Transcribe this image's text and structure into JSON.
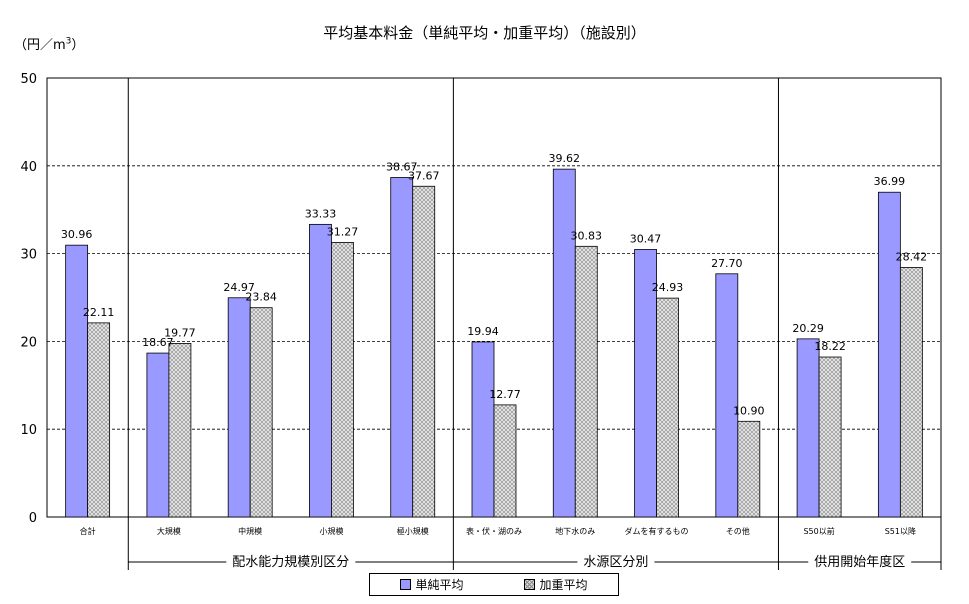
{
  "title": "平均基本料金（単純平均・加重平均）（施設別）",
  "unit_label": "（円／m",
  "unit_sup": "3",
  "unit_close": "）",
  "colors": {
    "simple": "#9999ff",
    "weighted": "#e0e0e0",
    "grid": "#000000"
  },
  "legend": {
    "simple": "単純平均",
    "weighted": "加重平均"
  },
  "chart_data": {
    "type": "bar",
    "title": "平均基本料金（単純平均・加重平均）（施設別）",
    "ylabel": "（円／m3）",
    "xlabel": "",
    "ylim": [
      0,
      50
    ],
    "yticks": [
      0,
      10,
      20,
      30,
      40,
      50
    ],
    "grid": "horizontal-dashed",
    "legend_position": "bottom",
    "categories": [
      "合計",
      "大規模",
      "中規模",
      "小規模",
      "極小規模",
      "表・伏・湖のみ",
      "地下水のみ",
      "ダムを有するもの",
      "その他",
      "S50以前",
      "S51以降"
    ],
    "groups": [
      {
        "label": "",
        "categories": [
          "合計"
        ]
      },
      {
        "label": "配水能力規模別区分",
        "categories": [
          "大規模",
          "中規模",
          "小規模",
          "極小規模"
        ]
      },
      {
        "label": "水源区分別",
        "categories": [
          "表・伏・湖のみ",
          "地下水のみ",
          "ダムを有するもの",
          "その他"
        ]
      },
      {
        "label": "供用開始年度区",
        "categories": [
          "S50以前",
          "S51以降"
        ]
      }
    ],
    "series": [
      {
        "name": "単純平均",
        "values": [
          30.96,
          18.67,
          24.97,
          33.33,
          38.67,
          19.94,
          39.62,
          30.47,
          27.7,
          20.29,
          36.99
        ],
        "labels": [
          "30.96",
          "18.67",
          "24.97",
          "33.33",
          "38.67",
          "19.94",
          "39.62",
          "30.47",
          "27.70",
          "20.29",
          "36.99"
        ]
      },
      {
        "name": "加重平均",
        "values": [
          22.11,
          19.77,
          23.84,
          31.27,
          37.67,
          12.77,
          30.83,
          24.93,
          10.9,
          18.22,
          28.42
        ],
        "labels": [
          "22.11",
          "19.77",
          "23.84",
          "31.27",
          "37.67",
          "12.77",
          "30.83",
          "24.93",
          "10.90",
          "18.22",
          "28.42"
        ]
      }
    ]
  }
}
